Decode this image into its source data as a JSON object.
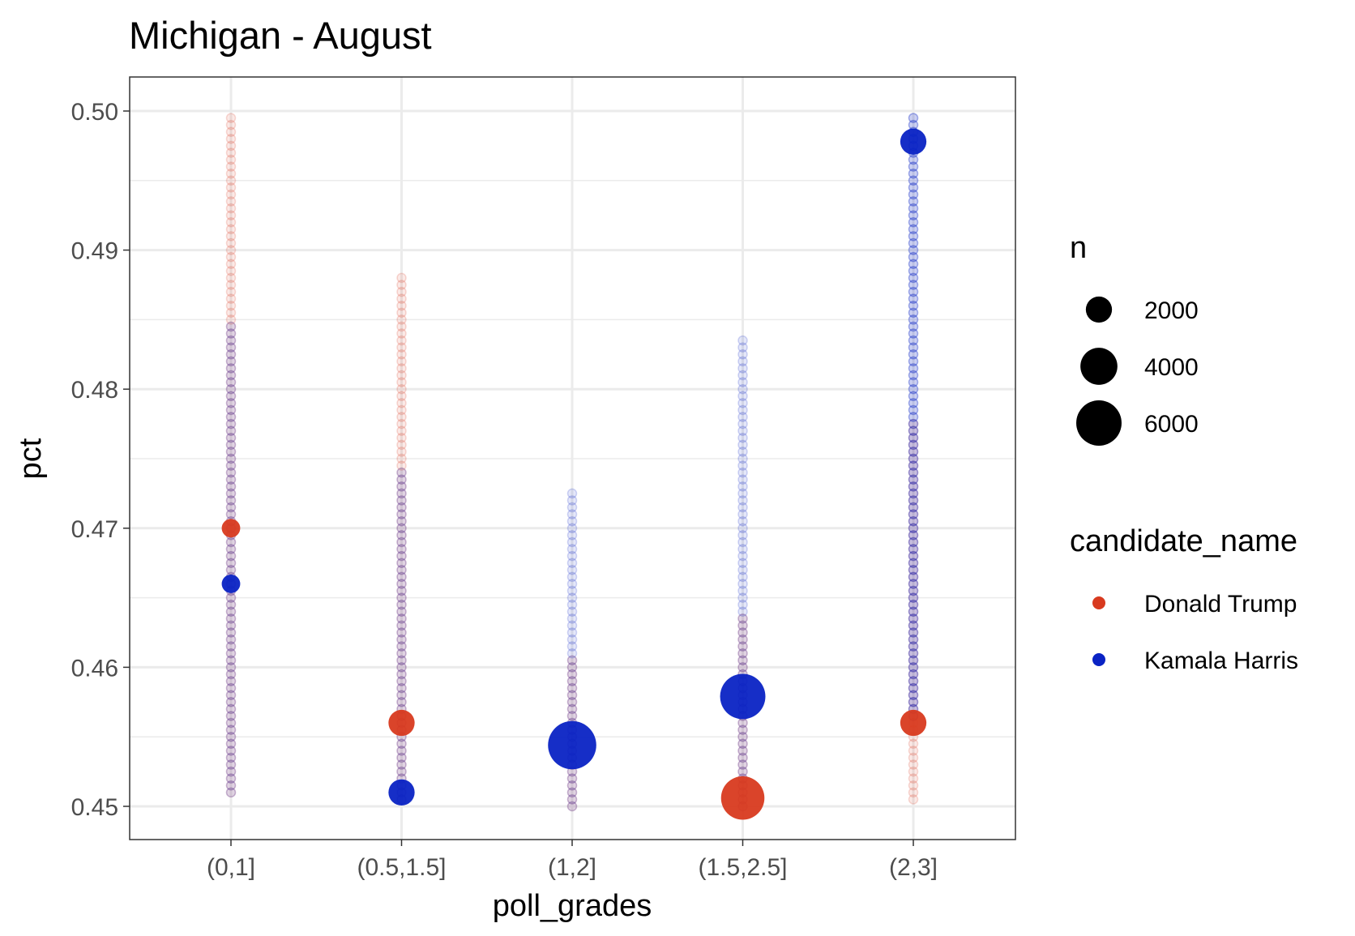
{
  "chart_data": {
    "type": "scatter",
    "title": "Michigan - August",
    "xlabel": "poll_grades",
    "ylabel": "pct",
    "categories": [
      "(0,1]",
      "(0.5,1.5]",
      "(1,2]",
      "(1.5,2.5]",
      "(2,3]"
    ],
    "ylim": [
      0.4475,
      0.5025
    ],
    "yticks": [
      0.45,
      0.46,
      0.47,
      0.48,
      0.49,
      0.5
    ],
    "ytick_labels": [
      "0.45",
      "0.46",
      "0.47",
      "0.48",
      "0.49",
      "0.50"
    ],
    "grid": true,
    "colors": {
      "Donald Trump": "#d83a1f",
      "Kamala Harris": "#0a23c4"
    },
    "background_points": [
      {
        "category": "(0,1]",
        "series": [
          {
            "name": "Donald Trump",
            "min": 0.451,
            "max": 0.4995
          },
          {
            "name": "Kamala Harris",
            "min": 0.451,
            "max": 0.4845
          }
        ]
      },
      {
        "category": "(0.5,1.5]",
        "series": [
          {
            "name": "Donald Trump",
            "min": 0.4505,
            "max": 0.488
          },
          {
            "name": "Kamala Harris",
            "min": 0.4505,
            "max": 0.474
          }
        ]
      },
      {
        "category": "(1,2]",
        "series": [
          {
            "name": "Donald Trump",
            "min": 0.45,
            "max": 0.4605
          },
          {
            "name": "Kamala Harris",
            "min": 0.45,
            "max": 0.4725
          }
        ]
      },
      {
        "category": "(1.5,2.5]",
        "series": [
          {
            "name": "Donald Trump",
            "min": 0.45,
            "max": 0.4635
          },
          {
            "name": "Kamala Harris",
            "min": 0.45,
            "max": 0.4835
          }
        ]
      },
      {
        "category": "(2,3]",
        "series": [
          {
            "name": "Donald Trump",
            "min": 0.4505,
            "max": 0.4775
          },
          {
            "name": "Kamala Harris",
            "min": 0.4565,
            "max": 0.4998
          }
        ]
      }
    ],
    "series": [
      {
        "name": "Donald Trump",
        "points": [
          {
            "x": "(0,1]",
            "y": 0.47,
            "n": 1000
          },
          {
            "x": "(0.5,1.5]",
            "y": 0.456,
            "n": 2000
          },
          {
            "x": "(1.5,2.5]",
            "y": 0.4506,
            "n": 5500
          },
          {
            "x": "(2,3]",
            "y": 0.456,
            "n": 2000
          }
        ]
      },
      {
        "name": "Kamala Harris",
        "points": [
          {
            "x": "(0,1]",
            "y": 0.466,
            "n": 1000
          },
          {
            "x": "(0.5,1.5]",
            "y": 0.451,
            "n": 2000
          },
          {
            "x": "(1,2]",
            "y": 0.4544,
            "n": 6800
          },
          {
            "x": "(1.5,2.5]",
            "y": 0.4579,
            "n": 6000
          },
          {
            "x": "(2,3]",
            "y": 0.4978,
            "n": 2000
          }
        ]
      }
    ],
    "legend_size": {
      "title": "n",
      "values": [
        2000,
        4000,
        6000
      ],
      "labels": [
        "2000",
        "4000",
        "6000"
      ],
      "placement": "right"
    },
    "legend_color": {
      "title": "candidate_name",
      "entries": [
        "Donald Trump",
        "Kamala Harris"
      ],
      "placement": "right"
    }
  }
}
